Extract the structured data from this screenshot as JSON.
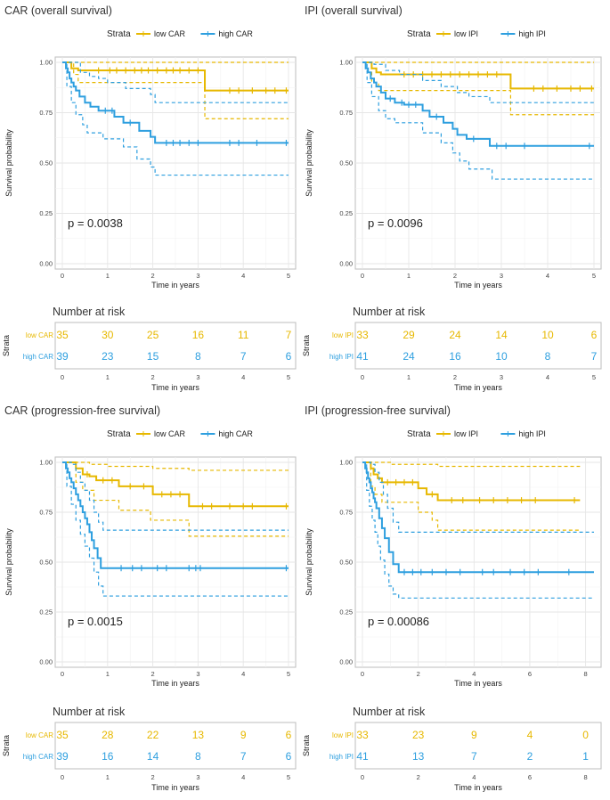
{
  "figure": {
    "colors": {
      "low": "#E7B800",
      "high": "#2E9FDF",
      "grid": "#E6E6E6",
      "panel_border": "#BDBDBD"
    },
    "icons": {
      "legend_line": "line-with-cross-icon"
    }
  },
  "chart_data": [
    {
      "id": "car_os",
      "type": "line",
      "title": "CAR (overall survival)",
      "xlabel": "Time in years",
      "ylabel": "Survival probability",
      "xlim": [
        0,
        5
      ],
      "ylim": [
        0,
        1
      ],
      "xticks": [
        0,
        1,
        2,
        3,
        4,
        5
      ],
      "xtick_labels": [
        "0",
        "1",
        "2",
        "3",
        "4",
        "5"
      ],
      "yticks": [
        0,
        0.25,
        0.5,
        0.75,
        1.0
      ],
      "ytick_labels": [
        "0.00",
        "0.25",
        "0.50",
        "0.75",
        "1.00"
      ],
      "legend_title": "Strata",
      "pvalue": "p = 0.0038",
      "risk_title": "Number at risk",
      "risk_ylabel": "Strata",
      "risk_xlabel": "Time in years",
      "series": [
        {
          "name": "low CAR",
          "key": "low",
          "x": [
            0,
            0.15,
            0.2,
            0.35,
            3.05,
            3.15,
            5
          ],
          "y": [
            1,
            1,
            0.97,
            0.96,
            0.96,
            0.86,
            0.86
          ],
          "lower_x": [
            0,
            0.25,
            0.35,
            3.05,
            3.15,
            5
          ],
          "lower_y": [
            1,
            0.94,
            0.9,
            0.9,
            0.72,
            0.72
          ],
          "upper_x": [
            0,
            5
          ],
          "upper_y": [
            1,
            1
          ],
          "censor_x": [
            0.8,
            1.05,
            1.2,
            1.4,
            1.6,
            1.75,
            1.9,
            2.1,
            2.3,
            2.45,
            2.6,
            2.8,
            3.0,
            3.7,
            3.9,
            4.2,
            4.5,
            4.7,
            4.95
          ],
          "risk_counts": [
            "35",
            "30",
            "25",
            "16",
            "11",
            "7"
          ]
        },
        {
          "name": "high CAR",
          "key": "high",
          "x": [
            0,
            0.08,
            0.12,
            0.16,
            0.2,
            0.25,
            0.3,
            0.38,
            0.5,
            0.62,
            0.8,
            1.15,
            1.35,
            1.7,
            1.95,
            2.05,
            5
          ],
          "y": [
            1,
            0.97,
            0.95,
            0.92,
            0.9,
            0.88,
            0.86,
            0.83,
            0.8,
            0.78,
            0.76,
            0.73,
            0.7,
            0.66,
            0.63,
            0.6,
            0.6
          ],
          "lower_x": [
            0,
            0.1,
            0.2,
            0.3,
            0.45,
            0.55,
            0.9,
            1.35,
            1.65,
            1.95,
            2.05,
            5
          ],
          "lower_y": [
            1,
            0.88,
            0.8,
            0.74,
            0.69,
            0.65,
            0.62,
            0.58,
            0.52,
            0.48,
            0.44,
            0.44
          ],
          "upper_x": [
            0,
            0.2,
            0.4,
            0.6,
            0.8,
            1.0,
            1.4,
            1.95,
            2.05,
            5
          ],
          "upper_y": [
            1,
            1,
            0.95,
            0.93,
            0.92,
            0.9,
            0.87,
            0.84,
            0.8,
            0.8
          ],
          "censor_x": [
            0.95,
            1.1,
            1.5,
            2.3,
            2.45,
            2.6,
            2.8,
            3.0,
            3.7,
            3.9,
            4.3,
            4.95
          ],
          "risk_counts": [
            "39",
            "23",
            "15",
            "8",
            "7",
            "6"
          ]
        }
      ]
    },
    {
      "id": "ipi_os",
      "type": "line",
      "title": "IPI (overall survival)",
      "xlabel": "Time in years",
      "ylabel": "Survival probability",
      "xlim": [
        0,
        5
      ],
      "ylim": [
        0,
        1
      ],
      "xticks": [
        0,
        1,
        2,
        3,
        4,
        5
      ],
      "xtick_labels": [
        "0",
        "1",
        "2",
        "3",
        "4",
        "5"
      ],
      "yticks": [
        0,
        0.25,
        0.5,
        0.75,
        1.0
      ],
      "ytick_labels": [
        "0.00",
        "0.25",
        "0.50",
        "0.75",
        "1.00"
      ],
      "legend_title": "Strata",
      "pvalue": "p = 0.0096",
      "risk_title": "Number at risk",
      "risk_ylabel": "Strata",
      "risk_xlabel": "Time in years",
      "series": [
        {
          "name": "low IPI",
          "key": "low",
          "x": [
            0,
            0.1,
            0.2,
            0.3,
            0.4,
            3.1,
            3.2,
            5
          ],
          "y": [
            1,
            1,
            0.97,
            0.95,
            0.94,
            0.94,
            0.87,
            0.87
          ],
          "lower_x": [
            0,
            0.2,
            0.35,
            3.1,
            3.2,
            5
          ],
          "lower_y": [
            1,
            0.9,
            0.86,
            0.86,
            0.74,
            0.74
          ],
          "upper_x": [
            0,
            5
          ],
          "upper_y": [
            1,
            1
          ],
          "censor_x": [
            0.9,
            1.1,
            1.3,
            1.5,
            1.7,
            1.9,
            2.1,
            2.3,
            2.5,
            2.7,
            2.9,
            3.7,
            3.9,
            4.2,
            4.5,
            4.7,
            4.95
          ],
          "risk_counts": [
            "33",
            "29",
            "24",
            "14",
            "10",
            "6"
          ]
        },
        {
          "name": "high IPI",
          "key": "high",
          "x": [
            0,
            0.07,
            0.12,
            0.18,
            0.25,
            0.3,
            0.4,
            0.5,
            0.7,
            0.9,
            1.3,
            1.45,
            1.75,
            1.95,
            2.05,
            2.25,
            2.75,
            5
          ],
          "y": [
            1,
            0.97,
            0.95,
            0.92,
            0.9,
            0.88,
            0.85,
            0.82,
            0.8,
            0.79,
            0.76,
            0.73,
            0.7,
            0.67,
            0.64,
            0.62,
            0.585,
            0.585
          ],
          "lower_x": [
            0,
            0.1,
            0.2,
            0.35,
            0.5,
            0.7,
            1.3,
            1.7,
            1.95,
            2.1,
            2.3,
            2.8,
            5
          ],
          "lower_y": [
            1,
            0.9,
            0.83,
            0.76,
            0.72,
            0.7,
            0.65,
            0.6,
            0.55,
            0.51,
            0.47,
            0.42,
            0.42
          ],
          "upper_x": [
            0,
            0.25,
            0.5,
            0.8,
            1.3,
            1.7,
            2.05,
            2.3,
            2.75,
            5
          ],
          "upper_y": [
            1,
            0.99,
            0.96,
            0.94,
            0.91,
            0.88,
            0.85,
            0.83,
            0.8,
            0.8
          ],
          "censor_x": [
            0.6,
            0.85,
            1.0,
            1.15,
            1.6,
            2.4,
            2.9,
            3.1,
            3.5,
            4.9
          ],
          "risk_counts": [
            "41",
            "24",
            "16",
            "10",
            "8",
            "7"
          ]
        }
      ]
    },
    {
      "id": "car_pfs",
      "type": "line",
      "title": "CAR (progression-free survival)",
      "xlabel": "Time in years",
      "ylabel": "Survival probability",
      "xlim": [
        0,
        5
      ],
      "ylim": [
        0,
        1
      ],
      "xticks": [
        0,
        1,
        2,
        3,
        4,
        5
      ],
      "xtick_labels": [
        "0",
        "1",
        "2",
        "3",
        "4",
        "5"
      ],
      "yticks": [
        0,
        0.25,
        0.5,
        0.75,
        1.0
      ],
      "ytick_labels": [
        "0.00",
        "0.25",
        "0.50",
        "0.75",
        "1.00"
      ],
      "legend_title": "Strata",
      "pvalue": "p = 0.0015",
      "risk_title": "Number at risk",
      "risk_ylabel": "Strata",
      "risk_xlabel": "Time in years",
      "series": [
        {
          "name": "low CAR",
          "key": "low",
          "x": [
            0,
            0.2,
            0.3,
            0.45,
            0.6,
            0.75,
            1.25,
            2.0,
            2.8,
            5
          ],
          "y": [
            1,
            1,
            0.97,
            0.94,
            0.93,
            0.91,
            0.88,
            0.84,
            0.78,
            0.78
          ],
          "lower_x": [
            0,
            0.3,
            0.45,
            0.7,
            1.25,
            1.95,
            2.8,
            5
          ],
          "lower_y": [
            1,
            0.9,
            0.86,
            0.81,
            0.76,
            0.71,
            0.63,
            0.63
          ],
          "upper_x": [
            0,
            0.3,
            0.6,
            1.0,
            1.25,
            2.0,
            2.8,
            5
          ],
          "upper_y": [
            1,
            1,
            0.99,
            0.98,
            0.98,
            0.97,
            0.96,
            0.96
          ],
          "censor_x": [
            0.55,
            0.9,
            1.1,
            1.5,
            1.8,
            2.2,
            2.4,
            2.6,
            3.1,
            3.3,
            3.7,
            4.0,
            4.2,
            4.95
          ],
          "risk_counts": [
            "35",
            "28",
            "22",
            "13",
            "9",
            "6"
          ]
        },
        {
          "name": "high CAR",
          "key": "high",
          "x": [
            0,
            0.08,
            0.12,
            0.16,
            0.2,
            0.25,
            0.3,
            0.35,
            0.4,
            0.45,
            0.5,
            0.55,
            0.6,
            0.65,
            0.7,
            0.78,
            0.85,
            5
          ],
          "y": [
            1,
            0.97,
            0.95,
            0.92,
            0.9,
            0.87,
            0.84,
            0.81,
            0.78,
            0.75,
            0.72,
            0.69,
            0.65,
            0.61,
            0.57,
            0.52,
            0.47,
            0.47
          ],
          "lower_x": [
            0,
            0.1,
            0.2,
            0.3,
            0.4,
            0.5,
            0.6,
            0.7,
            0.8,
            0.9,
            5
          ],
          "lower_y": [
            1,
            0.88,
            0.79,
            0.71,
            0.64,
            0.58,
            0.52,
            0.45,
            0.38,
            0.33,
            0.33
          ],
          "upper_x": [
            0,
            0.2,
            0.3,
            0.4,
            0.5,
            0.6,
            0.7,
            0.8,
            0.9,
            5
          ],
          "upper_y": [
            1,
            0.99,
            0.95,
            0.9,
            0.86,
            0.81,
            0.75,
            0.7,
            0.66,
            0.66
          ],
          "censor_x": [
            1.3,
            1.55,
            1.75,
            2.1,
            2.3,
            2.8,
            2.95,
            3.05,
            4.95
          ],
          "risk_counts": [
            "39",
            "16",
            "14",
            "8",
            "7",
            "6"
          ]
        }
      ]
    },
    {
      "id": "ipi_pfs",
      "type": "line",
      "title": "IPI (progression-free survival)",
      "xlabel": "Time in years",
      "ylabel": "Survival probability",
      "xlim": [
        0,
        8.3
      ],
      "ylim": [
        0,
        1
      ],
      "xticks": [
        0,
        2,
        4,
        6,
        8
      ],
      "xtick_labels": [
        "0",
        "2",
        "4",
        "6",
        "8"
      ],
      "yticks": [
        0,
        0.25,
        0.5,
        0.75,
        1.0
      ],
      "ytick_labels": [
        "0.00",
        "0.25",
        "0.50",
        "0.75",
        "1.00"
      ],
      "legend_title": "Strata",
      "pvalue": "p = 0.00086",
      "risk_title": "Number at risk",
      "risk_ylabel": "Strata",
      "risk_xlabel": "Time in years",
      "series": [
        {
          "name": "low IPI",
          "key": "low",
          "x": [
            0,
            0.2,
            0.3,
            0.4,
            0.55,
            0.7,
            2.0,
            2.3,
            2.7,
            7.8
          ],
          "y": [
            1,
            1,
            0.97,
            0.94,
            0.92,
            0.9,
            0.87,
            0.84,
            0.81,
            0.81
          ],
          "lower_x": [
            0,
            0.3,
            0.45,
            0.7,
            2.0,
            2.5,
            2.7,
            7.8
          ],
          "lower_y": [
            1,
            0.88,
            0.84,
            0.8,
            0.75,
            0.71,
            0.66,
            0.66
          ],
          "upper_x": [
            0,
            0.5,
            1.0,
            2.0,
            2.7,
            7.8
          ],
          "upper_y": [
            1,
            1,
            0.99,
            0.99,
            0.98,
            0.98
          ],
          "censor_x": [
            0.9,
            1.2,
            1.5,
            1.8,
            2.5,
            3.2,
            3.6,
            4.2,
            4.7,
            5.2,
            5.7,
            6.2,
            7.6
          ],
          "risk_counts": [
            "33",
            "23",
            "9",
            "4",
            "0"
          ]
        },
        {
          "name": "high IPI",
          "key": "high",
          "x": [
            0,
            0.1,
            0.15,
            0.2,
            0.25,
            0.3,
            0.35,
            0.4,
            0.45,
            0.5,
            0.6,
            0.7,
            0.8,
            0.95,
            1.1,
            1.3,
            8.3
          ],
          "y": [
            1,
            0.97,
            0.95,
            0.92,
            0.9,
            0.87,
            0.85,
            0.82,
            0.8,
            0.77,
            0.72,
            0.67,
            0.62,
            0.55,
            0.49,
            0.45,
            0.45
          ],
          "lower_x": [
            0,
            0.15,
            0.25,
            0.35,
            0.45,
            0.55,
            0.65,
            0.8,
            0.95,
            1.1,
            1.3,
            8.3
          ],
          "lower_y": [
            1,
            0.86,
            0.78,
            0.71,
            0.65,
            0.58,
            0.51,
            0.44,
            0.38,
            0.34,
            0.32,
            0.32
          ],
          "upper_x": [
            0,
            0.3,
            0.45,
            0.6,
            0.75,
            0.9,
            1.1,
            1.3,
            8.3
          ],
          "upper_y": [
            1,
            0.99,
            0.95,
            0.9,
            0.84,
            0.77,
            0.7,
            0.65,
            0.65
          ],
          "censor_x": [
            1.5,
            1.8,
            2.1,
            2.5,
            3.0,
            3.5,
            4.3,
            4.7,
            5.3,
            5.8,
            6.3,
            7.4
          ],
          "risk_counts": [
            "41",
            "13",
            "7",
            "2",
            "1"
          ]
        }
      ]
    }
  ]
}
